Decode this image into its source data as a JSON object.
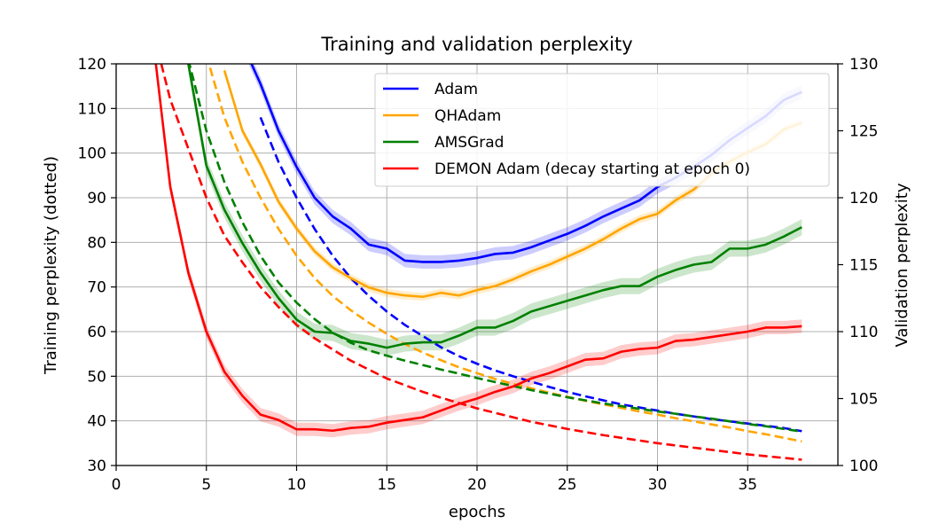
{
  "chart_data": {
    "type": "line",
    "title": "Training and validation perplexity",
    "xlabel": "epochs",
    "ylabel_left": "Training perplexity (dotted)",
    "ylabel_right": "Validation perplexity",
    "xlim": [
      0,
      40
    ],
    "ylim_left": [
      30,
      120
    ],
    "ylim_right": [
      100,
      130
    ],
    "x_ticks": [
      0,
      5,
      10,
      15,
      20,
      25,
      30,
      35
    ],
    "y_left_ticks": [
      30,
      40,
      50,
      60,
      70,
      80,
      90,
      100,
      110,
      120
    ],
    "y_right_ticks": [
      100,
      105,
      110,
      115,
      120,
      125,
      130
    ],
    "grid": true,
    "legend_position": "upper-right",
    "series": [
      {
        "name": "Adam",
        "color": "#0000ff",
        "validation": {
          "x": [
            7,
            8,
            9,
            10,
            11,
            12,
            13,
            14,
            15,
            16,
            17,
            18,
            19,
            20,
            21,
            22,
            23,
            24,
            25,
            26,
            27,
            28,
            29,
            30,
            31,
            32,
            33,
            34,
            35,
            36,
            37,
            38
          ],
          "y": [
            131.5,
            128.5,
            125.0,
            122.3,
            120.0,
            118.6,
            117.7,
            116.5,
            116.2,
            115.3,
            115.2,
            115.2,
            115.3,
            115.5,
            115.8,
            115.9,
            116.3,
            116.8,
            117.3,
            117.9,
            118.6,
            119.2,
            119.8,
            120.8,
            121.5,
            122.3,
            123.2,
            124.3,
            125.2,
            126.1,
            127.3,
            127.9
          ],
          "band": 0.5
        },
        "training": {
          "x": [
            8,
            9,
            10,
            11,
            12,
            13,
            14,
            15,
            16,
            17,
            18,
            19,
            20,
            21,
            22,
            23,
            24,
            25,
            26,
            27,
            28,
            29,
            30,
            31,
            32,
            33,
            34,
            35,
            36,
            37,
            38
          ],
          "y": [
            108,
            98,
            90,
            83,
            77,
            72,
            68,
            64.5,
            61.5,
            59,
            56.5,
            54.5,
            52.8,
            51.3,
            50,
            48.8,
            47.6,
            46.5,
            45.5,
            44.6,
            43.7,
            43,
            42.3,
            41.6,
            41,
            40.4,
            39.9,
            39.4,
            38.9,
            38.4,
            37.7
          ]
        }
      },
      {
        "name": "QHAdam",
        "color": "#ffa500",
        "validation": {
          "x": [
            6,
            7,
            8,
            9,
            10,
            11,
            12,
            13,
            14,
            15,
            16,
            17,
            18,
            19,
            20,
            21,
            22,
            23,
            24,
            25,
            26,
            27,
            28,
            29,
            30,
            31,
            32,
            33,
            34,
            35,
            36,
            37,
            38
          ],
          "y": [
            129.5,
            125.0,
            122.5,
            119.7,
            117.7,
            116.0,
            114.8,
            114.0,
            113.3,
            112.9,
            112.7,
            112.6,
            112.9,
            112.7,
            113.1,
            113.4,
            113.9,
            114.5,
            115.0,
            115.6,
            116.2,
            116.9,
            117.7,
            118.4,
            118.8,
            119.8,
            120.6,
            121.8,
            122.7,
            123.4,
            124.0,
            125.1,
            125.6
          ],
          "band": 0.3
        },
        "training": {
          "x": [
            5,
            6,
            7,
            8,
            9,
            10,
            11,
            12,
            13,
            14,
            15,
            16,
            17,
            18,
            19,
            20,
            21,
            22,
            23,
            24,
            25,
            26,
            27,
            28,
            29,
            30,
            31,
            32,
            33,
            34,
            35,
            36,
            37,
            38
          ],
          "y": [
            122,
            108,
            98,
            90,
            83,
            77,
            72,
            68,
            64.8,
            62,
            59.5,
            57.2,
            55.3,
            53.6,
            52,
            50.7,
            49.4,
            48.3,
            47.3,
            46.3,
            45.4,
            44.5,
            43.7,
            42.9,
            42.1,
            41.4,
            40.6,
            39.9,
            39.2,
            38.5,
            37.7,
            37,
            36.2,
            35.4
          ]
        }
      },
      {
        "name": "AMSGrad",
        "color": "#008000",
        "validation": {
          "x": [
            4,
            5,
            6,
            7,
            8,
            9,
            10,
            11,
            12,
            13,
            14,
            15,
            16,
            17,
            18,
            19,
            20,
            21,
            22,
            23,
            24,
            25,
            26,
            27,
            28,
            29,
            30,
            31,
            32,
            33,
            34,
            35,
            36,
            37,
            38
          ],
          "y": [
            130.0,
            122.4,
            119.1,
            116.6,
            114.4,
            112.5,
            110.9,
            110.0,
            109.9,
            109.3,
            109.1,
            108.8,
            109.1,
            109.2,
            109.2,
            109.7,
            110.3,
            110.3,
            110.8,
            111.5,
            111.9,
            112.3,
            112.7,
            113.1,
            113.4,
            113.4,
            114.1,
            114.6,
            115.0,
            115.2,
            116.2,
            116.2,
            116.5,
            117.1,
            117.8
          ],
          "band": 0.6
        },
        "training": {
          "x": [
            4,
            5,
            6,
            7,
            8,
            9,
            10,
            11,
            12,
            13,
            14,
            15,
            16,
            17,
            18,
            19,
            20,
            21,
            22,
            23,
            24,
            25,
            26,
            27,
            28,
            29,
            30,
            31,
            32,
            33,
            34,
            35,
            36,
            37,
            38
          ],
          "y": [
            121,
            105,
            93.5,
            84.5,
            77,
            71,
            66.5,
            62.8,
            59.8,
            57.5,
            55.8,
            54.6,
            53.5,
            52.5,
            51.5,
            50.6,
            49.6,
            48.7,
            47.8,
            46.9,
            46.1,
            45.3,
            44.6,
            43.9,
            43.3,
            42.7,
            42.1,
            41.6,
            41,
            40.5,
            39.9,
            39.3,
            38.8,
            38.2,
            37.6
          ]
        }
      },
      {
        "name": "DEMON Adam (decay starting at epoch 0)",
        "color": "#ff0000",
        "validation": {
          "x": [
            2.2,
            3,
            4,
            5,
            6,
            7,
            8,
            9,
            10,
            11,
            12,
            13,
            14,
            15,
            16,
            17,
            18,
            19,
            20,
            21,
            22,
            23,
            24,
            25,
            26,
            27,
            28,
            29,
            30,
            31,
            32,
            33,
            34,
            35,
            36,
            37,
            38
          ],
          "y": [
            130.0,
            120.8,
            114.4,
            110.0,
            107.0,
            105.2,
            103.8,
            103.4,
            102.7,
            102.7,
            102.6,
            102.8,
            102.9,
            103.2,
            103.4,
            103.6,
            104.1,
            104.6,
            105.0,
            105.5,
            105.9,
            106.5,
            106.9,
            107.4,
            107.9,
            108.0,
            108.5,
            108.7,
            108.8,
            109.3,
            109.4,
            109.6,
            109.8,
            110.0,
            110.3,
            110.3,
            110.4
          ],
          "band": 0.5
        },
        "training": {
          "x": [
            2.5,
            3,
            4,
            5,
            6,
            7,
            8,
            9,
            10,
            11,
            12,
            13,
            14,
            15,
            16,
            17,
            18,
            19,
            20,
            21,
            22,
            23,
            24,
            25,
            26,
            27,
            28,
            29,
            30,
            31,
            32,
            33,
            34,
            35,
            36,
            37,
            38
          ],
          "y": [
            120,
            112,
            101,
            90,
            81.5,
            75.5,
            70,
            65.5,
            61.5,
            58.5,
            56,
            53.5,
            51.5,
            49.5,
            48,
            46.5,
            45.2,
            44,
            42.8,
            41.8,
            40.8,
            39.8,
            39,
            38.2,
            37.5,
            36.8,
            36.2,
            35.6,
            35,
            34.5,
            34,
            33.5,
            33,
            32.5,
            32.1,
            31.7,
            31.3
          ]
        }
      }
    ]
  }
}
